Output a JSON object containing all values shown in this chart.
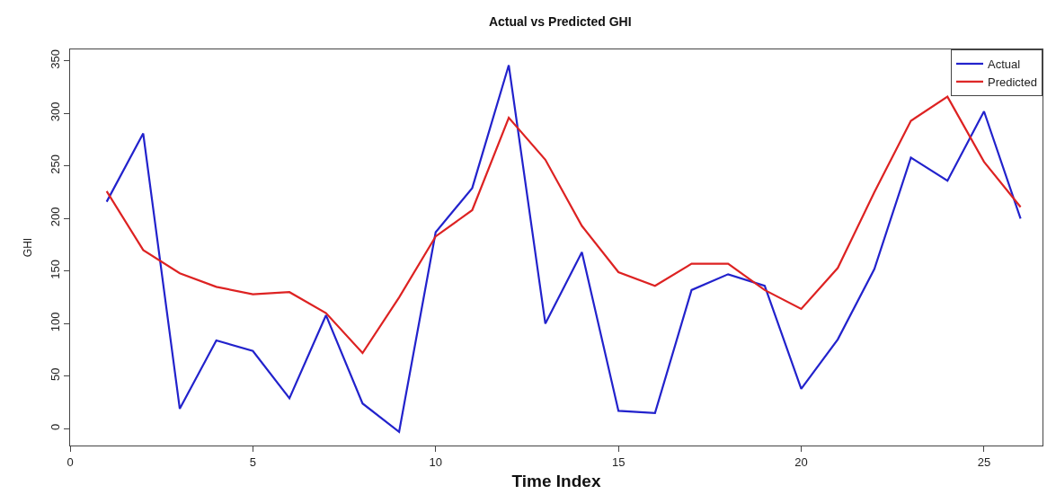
{
  "chart_data": {
    "type": "line",
    "title": "Actual vs Predicted GHI",
    "xlabel": "Time Index",
    "ylabel": "GHI",
    "x": [
      1,
      2,
      3,
      4,
      5,
      6,
      7,
      8,
      9,
      10,
      11,
      12,
      13,
      14,
      15,
      16,
      17,
      18,
      19,
      20,
      21,
      22,
      23,
      24,
      25,
      26
    ],
    "series": [
      {
        "name": "Actual",
        "color": "#2222cc",
        "values": [
          216,
          281,
          19,
          84,
          74,
          29,
          108,
          24,
          -3,
          187,
          229,
          346,
          100,
          168,
          17,
          15,
          132,
          147,
          136,
          38,
          85,
          152,
          258,
          236,
          302,
          200
        ]
      },
      {
        "name": "Predicted",
        "color": "#dd2222",
        "values": [
          226,
          170,
          148,
          135,
          128,
          130,
          110,
          72,
          125,
          183,
          208,
          296,
          256,
          193,
          149,
          136,
          157,
          157,
          132,
          114,
          153,
          225,
          293,
          316,
          254,
          211
        ]
      }
    ],
    "xlim": [
      0,
      26.6
    ],
    "ylim": [
      -16,
      361
    ],
    "xticks": [
      0,
      5,
      10,
      15,
      20,
      25
    ],
    "yticks": [
      0,
      50,
      100,
      150,
      200,
      250,
      300,
      350
    ],
    "legend": "top right",
    "marker": "none",
    "line_style": "solid"
  }
}
